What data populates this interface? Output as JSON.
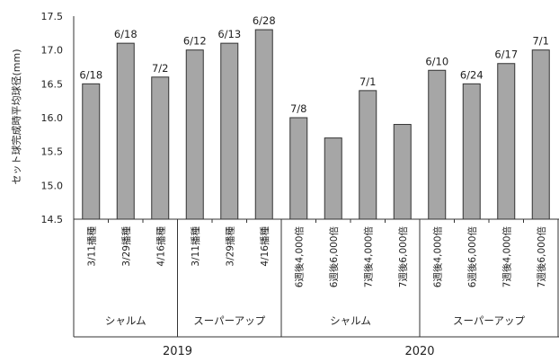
{
  "chart_data": {
    "type": "bar",
    "title": "",
    "ylabel": "セット球完成時平均球径(mm)",
    "ylim": [
      14.5,
      17.5
    ],
    "yticks": [
      "14.5",
      "15.0",
      "15.5",
      "16.0",
      "16.5",
      "17.0",
      "17.5"
    ],
    "grid": false,
    "legend": "none",
    "bar_color": "#a6a6a6",
    "categories": [
      "3/11播種",
      "3/29播種",
      "4/16播種",
      "3/11播種",
      "3/29播種",
      "4/16播種",
      "6週後4,000倍",
      "6週後6,000倍",
      "7週後4,000倍",
      "7週後6,000倍",
      "6週後4,000倍",
      "6週後6,000倍",
      "7週後4,000倍",
      "7週後6,000倍"
    ],
    "values": [
      16.5,
      17.1,
      16.6,
      17.0,
      17.1,
      17.3,
      16.0,
      15.7,
      16.4,
      15.9,
      16.7,
      16.5,
      16.8,
      17.0
    ],
    "data_labels": [
      "6/18",
      "6/18",
      "7/2",
      "6/12",
      "6/13",
      "6/28",
      "7/8",
      "",
      "7/1",
      "",
      "6/10",
      "6/24",
      "6/17",
      "7/1"
    ],
    "groups": [
      {
        "label": "シャルム",
        "start": 0,
        "count": 3
      },
      {
        "label": "スーパーアップ",
        "start": 3,
        "count": 3
      },
      {
        "label": "シャルム",
        "start": 6,
        "count": 4
      },
      {
        "label": "スーパーアップ",
        "start": 10,
        "count": 4
      }
    ],
    "years": [
      {
        "label": "2019",
        "start": 0,
        "count": 6
      },
      {
        "label": "2020",
        "start": 6,
        "count": 8
      }
    ]
  }
}
